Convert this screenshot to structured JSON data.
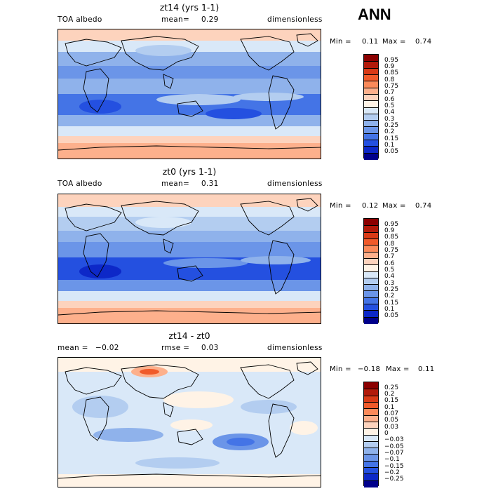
{
  "season": "ANN",
  "panels": [
    {
      "title": "zt14 (yrs 1-1)",
      "left_label": "TOA albedo",
      "center_label": "mean=",
      "center_value": "0.29",
      "right_label": "dimensionless",
      "min_label": "Min =",
      "min_value": "0.11",
      "max_label": "Max =",
      "max_value": "0.74",
      "colorbar": {
        "labels": [
          "0.95",
          "0.9",
          "0.85",
          "0.8",
          "0.75",
          "0.7",
          "0.6",
          "0.5",
          "0.4",
          "0.3",
          "0.25",
          "0.2",
          "0.15",
          "0.1",
          "0.05"
        ],
        "colors": [
          "#8b0000",
          "#b21a0a",
          "#d93a16",
          "#f05a2a",
          "#fb8a5a",
          "#fdb08c",
          "#fdd3bd",
          "#fff3e6",
          "#d9e8f8",
          "#b3cdf0",
          "#8fb2eb",
          "#6b95e8",
          "#4474e6",
          "#2450e0",
          "#0d28c8",
          "#00008b"
        ]
      }
    },
    {
      "title": "zt0 (yrs 1-1)",
      "left_label": "TOA albedo",
      "center_label": "mean=",
      "center_value": "0.31",
      "right_label": "dimensionless",
      "min_label": "Min =",
      "min_value": "0.12",
      "max_label": "Max =",
      "max_value": "0.74",
      "colorbar": {
        "labels": [
          "0.95",
          "0.9",
          "0.85",
          "0.8",
          "0.75",
          "0.7",
          "0.6",
          "0.5",
          "0.4",
          "0.3",
          "0.25",
          "0.2",
          "0.15",
          "0.1",
          "0.05"
        ],
        "colors": [
          "#8b0000",
          "#b21a0a",
          "#d93a16",
          "#f05a2a",
          "#fb8a5a",
          "#fdb08c",
          "#fdd3bd",
          "#fff3e6",
          "#d9e8f8",
          "#b3cdf0",
          "#8fb2eb",
          "#6b95e8",
          "#4474e6",
          "#2450e0",
          "#0d28c8",
          "#00008b"
        ]
      }
    },
    {
      "title": "zt14 - zt0",
      "left_label": "mean =",
      "left_value": "−0.02",
      "center_label": "rmse =",
      "center_value": "0.03",
      "right_label": "dimensionless",
      "min_label": "Min =",
      "min_value": "−0.18",
      "max_label": "Max =",
      "max_value": "0.11",
      "colorbar": {
        "labels": [
          "0.25",
          "0.2",
          "0.15",
          "0.1",
          "0.07",
          "0.05",
          "0.03",
          "0",
          "−0.03",
          "−0.05",
          "−0.07",
          "−0.1",
          "−0.15",
          "−0.2",
          "−0.25"
        ],
        "colors": [
          "#8b0000",
          "#b21a0a",
          "#d93a16",
          "#f05a2a",
          "#fb8a5a",
          "#fdb08c",
          "#fdd3bd",
          "#fff3e6",
          "#d9e8f8",
          "#b3cdf0",
          "#8fb2eb",
          "#6b95e8",
          "#4474e6",
          "#2450e0",
          "#0d28c8",
          "#00008b"
        ]
      }
    }
  ]
}
